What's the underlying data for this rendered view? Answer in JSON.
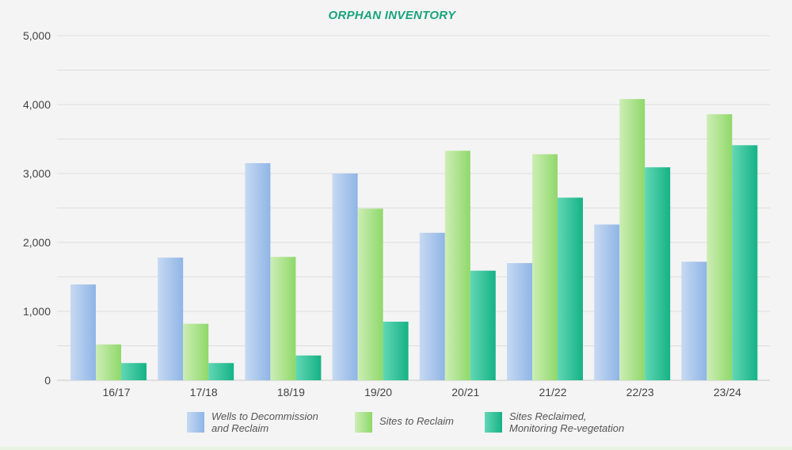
{
  "chart_data": {
    "type": "bar",
    "title": "ORPHAN INVENTORY",
    "xlabel": "",
    "ylabel": "",
    "ylim": [
      0,
      5000
    ],
    "yticks": [
      "0",
      "1,000",
      "2,000",
      "3,000",
      "4,000",
      "5,000"
    ],
    "grid": true,
    "legend_position": "bottom",
    "categories": [
      "16/17",
      "17/18",
      "18/19",
      "19/20",
      "20/21",
      "21/22",
      "22/23",
      "23/24"
    ],
    "series": [
      {
        "name": "Wells to Decommission and Reclaim",
        "legend_lines": [
          "Wells to Decommission",
          "and Reclaim"
        ],
        "color_light": "#c6d9f2",
        "color_dark": "#8fb5e6",
        "values": [
          1390,
          1780,
          3150,
          3000,
          2140,
          1700,
          2260,
          1720
        ]
      },
      {
        "name": "Sites to Reclaim",
        "legend_lines": [
          "Sites to Reclaim"
        ],
        "color_light": "#cdeeb5",
        "color_dark": "#8fd86a",
        "values": [
          520,
          820,
          1790,
          2490,
          3330,
          3280,
          4080,
          3860
        ]
      },
      {
        "name": "Sites Reclaimed, Monitoring Re-vegetation",
        "legend_lines": [
          "Sites Reclaimed,",
          "Monitoring Re-vegetation"
        ],
        "color_light": "#62d7b5",
        "color_dark": "#15b285",
        "values": [
          250,
          250,
          360,
          850,
          1590,
          2650,
          3090,
          3410
        ]
      }
    ]
  }
}
